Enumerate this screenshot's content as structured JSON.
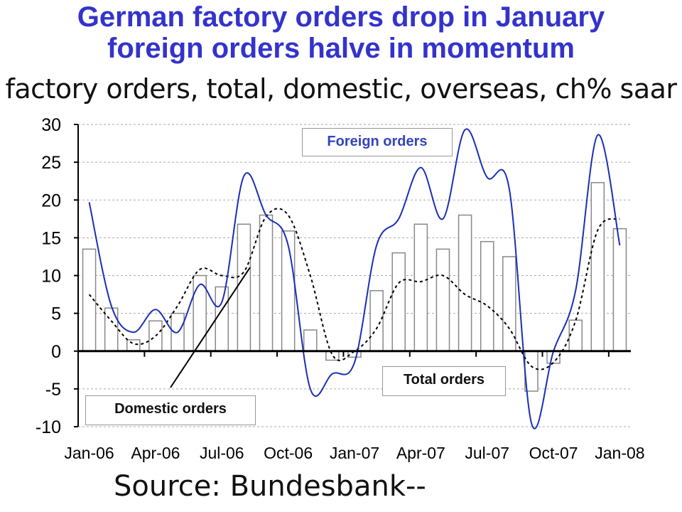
{
  "title_line1": "German factory orders drop in January",
  "title_line2": "foreign orders halve in momentum",
  "subtitle": "factory orders, total, domestic, overseas, ch% saar",
  "source": "Source: Bundesbank--",
  "colors": {
    "title": "#3333cc",
    "foreign_line": "#1a2fb5",
    "domestic_line": "#000000",
    "bar_fill": "#ffffff",
    "bar_stroke": "#888888",
    "grid": "#aaaaaa"
  },
  "chart_data": {
    "type": "bar",
    "title": "German factory orders drop in January foreign orders halve in momentum",
    "subtitle": "factory orders, total, domestic, overseas, ch% saar",
    "ylim": [
      -10,
      30
    ],
    "yticks": [
      30,
      25,
      20,
      15,
      10,
      5,
      0,
      -5,
      -10
    ],
    "grid": true,
    "x_tick_labels": [
      "Jan-06",
      "Apr-06",
      "Jul-06",
      "Oct-06",
      "Jan-07",
      "Apr-07",
      "Jul-07",
      "Oct-07",
      "Jan-08"
    ],
    "categories": [
      "Jan-06",
      "Feb-06",
      "Mar-06",
      "Apr-06",
      "May-06",
      "Jun-06",
      "Jul-06",
      "Aug-06",
      "Sep-06",
      "Oct-06",
      "Nov-06",
      "Dec-06",
      "Jan-07",
      "Feb-07",
      "Mar-07",
      "Apr-07",
      "May-07",
      "Jun-07",
      "Jul-07",
      "Aug-07",
      "Sep-07",
      "Oct-07",
      "Nov-07",
      "Dec-07",
      "Jan-08"
    ],
    "annotations": [
      "Foreign orders",
      "Total orders",
      "Domestic orders"
    ],
    "series": [
      {
        "name": "Total orders",
        "kind": "bar",
        "values": [
          13.5,
          5.7,
          1.5,
          4.0,
          5.0,
          10.0,
          8.5,
          16.8,
          18.0,
          15.9,
          2.8,
          -1.2,
          -0.8,
          8.0,
          13.0,
          16.8,
          13.5,
          18.0,
          14.5,
          12.5,
          -5.3,
          -1.6,
          4.1,
          22.3,
          16.2
        ]
      },
      {
        "name": "Foreign orders",
        "kind": "line",
        "style": "solid",
        "values": [
          19.7,
          6.0,
          2.5,
          5.5,
          2.5,
          8.8,
          6.5,
          23.2,
          18.0,
          14.0,
          -5.0,
          -3.0,
          -1.5,
          14.0,
          17.5,
          24.3,
          17.5,
          29.3,
          23.0,
          21.5,
          -9.5,
          0.0,
          8.0,
          28.6,
          14.0
        ]
      },
      {
        "name": "Domestic orders",
        "kind": "line",
        "style": "dashed",
        "values": [
          7.5,
          4.0,
          1.0,
          2.0,
          6.0,
          10.8,
          10.0,
          10.5,
          17.8,
          18.0,
          10.0,
          -0.5,
          0.0,
          3.0,
          9.0,
          9.2,
          10.0,
          7.5,
          6.0,
          3.0,
          -2.0,
          -1.5,
          4.0,
          16.0,
          17.5
        ]
      }
    ]
  }
}
